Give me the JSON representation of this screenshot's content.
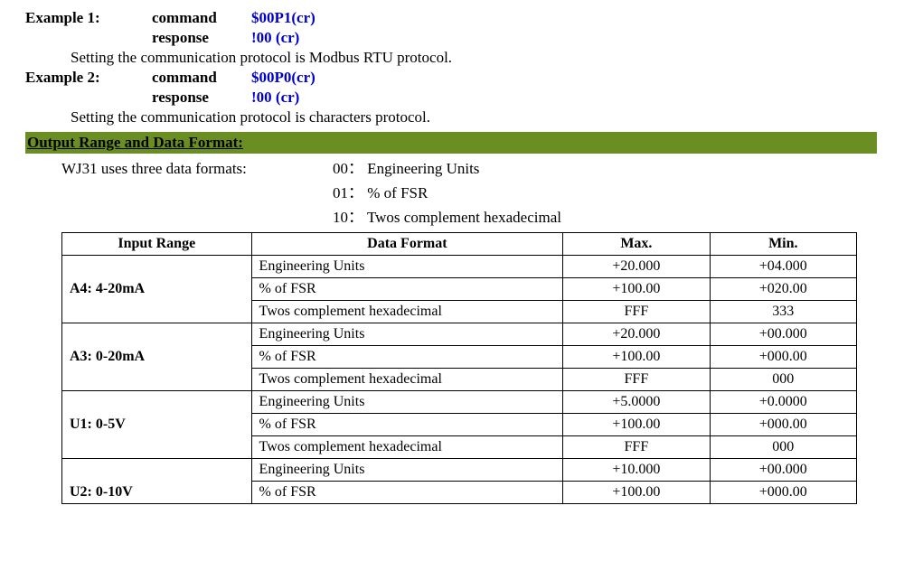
{
  "examples": [
    {
      "title": "Example 1:",
      "command_label": "command",
      "command": "$00P1(cr)",
      "response_label": "response",
      "response": "!00 (cr)",
      "note": "Setting the communication protocol is Modbus RTU protocol."
    },
    {
      "title": "Example 2:",
      "command_label": "command",
      "command": "$00P0(cr)",
      "response_label": "response",
      "response": "!00 (cr)",
      "note": "Setting the communication protocol is characters protocol."
    }
  ],
  "section_title": "Output Range and Data Format:",
  "formats_intro": "WJ31 uses three data formats:",
  "format_list": [
    {
      "code": "00：",
      "name": "Engineering Units"
    },
    {
      "code": "01：",
      "name": "% of FSR"
    },
    {
      "code": "10：",
      "name": "Twos complement hexadecimal"
    }
  ],
  "table": {
    "headers": {
      "c0": "Input Range",
      "c1": "Data Format",
      "c2": "Max.",
      "c3": "Min."
    },
    "groups": [
      {
        "range": "A4: 4-20mA",
        "rows": [
          {
            "fmt": "Engineering Units",
            "max": "+20.000",
            "min": "+04.000"
          },
          {
            "fmt": "% of FSR",
            "max": "+100.00",
            "min": "+020.00"
          },
          {
            "fmt": "Twos complement hexadecimal",
            "max": "FFF",
            "min": "333"
          }
        ]
      },
      {
        "range": "A3: 0-20mA",
        "rows": [
          {
            "fmt": "Engineering Units",
            "max": "+20.000",
            "min": "+00.000"
          },
          {
            "fmt": "% of FSR",
            "max": "+100.00",
            "min": "+000.00"
          },
          {
            "fmt": "Twos complement hexadecimal",
            "max": "FFF",
            "min": "000"
          }
        ]
      },
      {
        "range": "U1: 0-5V",
        "rows": [
          {
            "fmt": "Engineering Units",
            "max": "+5.0000",
            "min": "+0.0000"
          },
          {
            "fmt": "% of FSR",
            "max": "+100.00",
            "min": "+000.00"
          },
          {
            "fmt": "Twos complement hexadecimal",
            "max": "FFF",
            "min": "000"
          }
        ]
      },
      {
        "range": "U2:  0-10V",
        "rows": [
          {
            "fmt": "Engineering Units",
            "max": "+10.000",
            "min": "+00.000"
          },
          {
            "fmt": "% of FSR",
            "max": "+100.00",
            "min": "+000.00"
          }
        ]
      }
    ]
  }
}
